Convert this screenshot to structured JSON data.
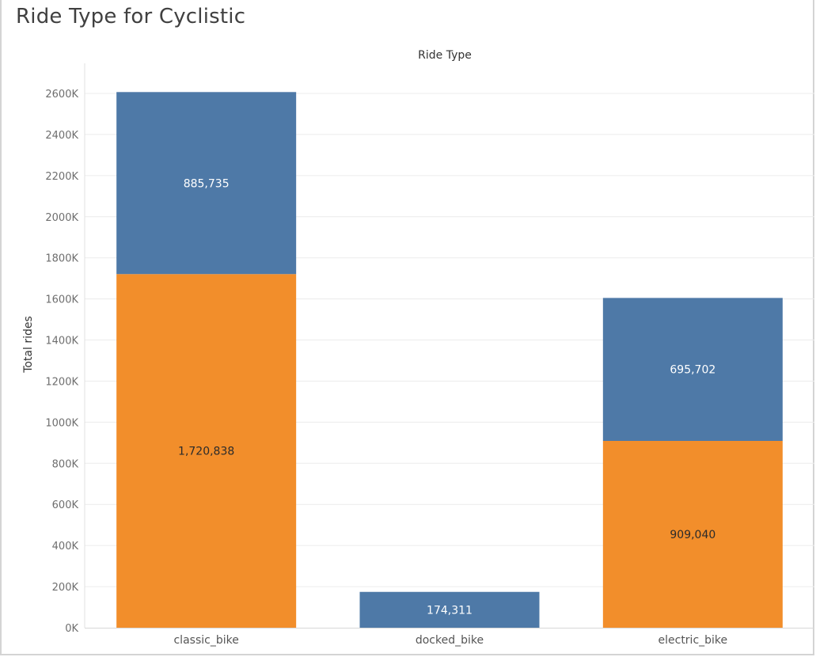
{
  "title": "Ride Type for Cyclistic",
  "chart_data": {
    "type": "bar",
    "stacked": true,
    "title": "Ride Type for Cyclistic",
    "xlabel": "Ride Type",
    "ylabel": "Total rides",
    "categories": [
      "classic_bike",
      "docked_bike",
      "electric_bike"
    ],
    "series": [
      {
        "color": "#f28e2b",
        "values": [
          1720838,
          0,
          909040
        ]
      },
      {
        "color": "#4e79a7",
        "values": [
          885735,
          174311,
          695702
        ]
      }
    ],
    "data_labels": [
      [
        "1,720,838",
        "",
        "909,040"
      ],
      [
        "885,735",
        "174,311",
        "695,702"
      ]
    ],
    "label_colors": [
      "#2b2b2b",
      "#ffffff"
    ],
    "ylim": [
      0,
      2600000
    ],
    "yticks": [
      0,
      200000,
      400000,
      600000,
      800000,
      1000000,
      1200000,
      1400000,
      1600000,
      1800000,
      2000000,
      2200000,
      2400000,
      2600000
    ],
    "ytick_labels": [
      "0K",
      "200K",
      "400K",
      "600K",
      "800K",
      "1000K",
      "1200K",
      "1400K",
      "1600K",
      "1800K",
      "2000K",
      "2200K",
      "2400K",
      "2600K"
    ],
    "grid": true,
    "legend": "none"
  }
}
